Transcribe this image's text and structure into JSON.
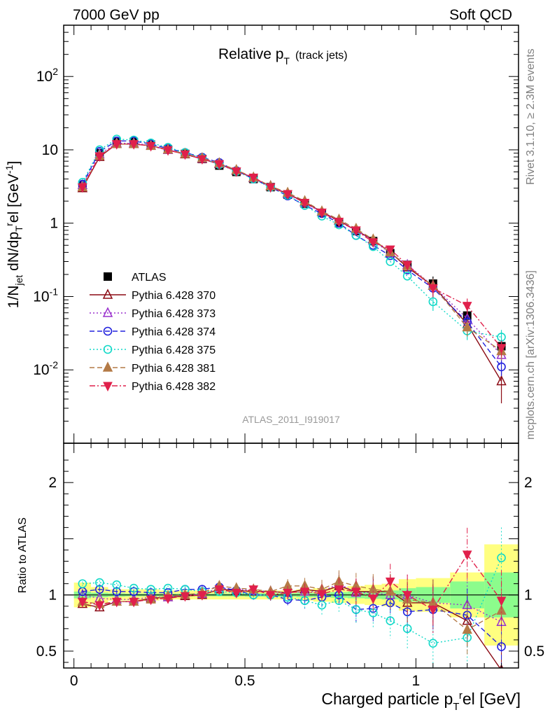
{
  "header": {
    "left": "7000 GeV pp",
    "right": "Soft QCD"
  },
  "side_text": {
    "right_upper": "Rivet 3.1.10, ≥ 2.3M events",
    "right_lower": "mcplots.cern.ch [arXiv:1306.3436]"
  },
  "plot_title": {
    "main": "Relative p",
    "sub": "T",
    "suffix": "(track jets)"
  },
  "analysis_label": "ATLAS_2011_I919017",
  "chart_data": [
    {
      "type": "scatter",
      "panel": "main",
      "ylabel": "1/N_jet dN/dp_T^rel [GeV^-1]",
      "yscale": "log",
      "ylim": [
        0.001,
        500
      ],
      "y_ticks": [
        {
          "value": 0.01,
          "label": "10^-2"
        },
        {
          "value": 0.1,
          "label": "10^-1"
        },
        {
          "value": 1,
          "label": "1"
        },
        {
          "value": 10,
          "label": "10"
        },
        {
          "value": 100,
          "label": "10^2"
        }
      ],
      "x": [
        0.025,
        0.075,
        0.125,
        0.175,
        0.225,
        0.275,
        0.325,
        0.375,
        0.425,
        0.475,
        0.525,
        0.575,
        0.625,
        0.675,
        0.725,
        0.775,
        0.825,
        0.875,
        0.925,
        0.975,
        1.05,
        1.15,
        1.25
      ],
      "xlim": [
        -0.03,
        1.3
      ],
      "legend_position": "middle-left",
      "series": [
        {
          "name": "ATLAS",
          "color": "#000000",
          "marker": "square",
          "line": "none",
          "values": [
            3.3,
            9.0,
            12.8,
            12.8,
            11.8,
            10.2,
            8.8,
            7.5,
            6.1,
            5.0,
            4.0,
            3.1,
            2.45,
            1.85,
            1.38,
            1.0,
            0.78,
            0.57,
            0.39,
            0.27,
            0.15,
            0.055,
            0.021
          ]
        },
        {
          "name": "Pythia 6.428 370",
          "color": "#8b0a14",
          "marker": "triangle-up-open",
          "line": "solid",
          "values": [
            3.0,
            8.0,
            12.0,
            12.0,
            11.4,
            10.0,
            8.7,
            7.5,
            6.4,
            5.2,
            4.1,
            3.2,
            2.5,
            1.95,
            1.42,
            1.08,
            0.8,
            0.59,
            0.4,
            0.25,
            0.14,
            0.042,
            0.007
          ]
        },
        {
          "name": "Pythia 6.428 373",
          "color": "#9a32cd",
          "marker": "triangle-up-open",
          "line": "dotted",
          "values": [
            3.3,
            8.7,
            12.3,
            12.3,
            11.5,
            10.0,
            8.8,
            7.6,
            6.5,
            5.25,
            4.15,
            3.2,
            2.5,
            1.9,
            1.42,
            1.1,
            0.8,
            0.58,
            0.39,
            0.27,
            0.14,
            0.05,
            0.016
          ]
        },
        {
          "name": "Pythia 6.428 374",
          "color": "#2222dd",
          "marker": "circle-open",
          "line": "dashed",
          "values": [
            3.4,
            9.5,
            13.2,
            13.2,
            12.0,
            10.4,
            9.2,
            7.9,
            6.7,
            5.2,
            4.0,
            3.1,
            2.35,
            1.75,
            1.35,
            1.0,
            0.68,
            0.5,
            0.36,
            0.23,
            0.13,
            0.045,
            0.011
          ]
        },
        {
          "name": "Pythia 6.428 375",
          "color": "#11d9c8",
          "marker": "circle-open",
          "line": "dotted",
          "values": [
            3.6,
            10.0,
            14.0,
            13.6,
            12.4,
            10.8,
            9.2,
            7.7,
            6.3,
            5.1,
            4.0,
            3.1,
            2.4,
            1.75,
            1.25,
            0.95,
            0.68,
            0.48,
            0.3,
            0.19,
            0.085,
            0.034,
            0.028
          ]
        },
        {
          "name": "Pythia 6.428 381",
          "color": "#b47a46",
          "marker": "triangle-up-filled",
          "line": "dashed",
          "values": [
            3.1,
            8.3,
            12.0,
            12.0,
            11.3,
            10.1,
            8.8,
            7.7,
            6.6,
            5.3,
            4.2,
            3.2,
            2.6,
            2.0,
            1.45,
            1.12,
            0.84,
            0.6,
            0.4,
            0.26,
            0.14,
            0.038,
            0.018
          ]
        },
        {
          "name": "Pythia 6.428 382",
          "color": "#e0204b",
          "marker": "triangle-down-filled",
          "line": "dashdot",
          "values": [
            3.1,
            8.2,
            12.0,
            12.0,
            11.3,
            9.9,
            8.7,
            7.5,
            6.4,
            5.1,
            4.2,
            3.1,
            2.5,
            1.9,
            1.4,
            1.05,
            0.8,
            0.55,
            0.44,
            0.27,
            0.13,
            0.075,
            0.02
          ]
        }
      ]
    },
    {
      "type": "line",
      "panel": "ratio",
      "ylabel": "Ratio to ATLAS",
      "xlabel": "Charged particle p_T^rel [GeV]",
      "ylim": [
        0.35,
        2.35
      ],
      "y_ticks": [
        0.5,
        1,
        2
      ],
      "x_ticks": [
        0,
        0.5,
        1
      ],
      "xlim": [
        -0.03,
        1.3
      ],
      "bin_edges": [
        0,
        0.05,
        0.1,
        0.15,
        0.2,
        0.25,
        0.3,
        0.35,
        0.4,
        0.45,
        0.5,
        0.55,
        0.6,
        0.65,
        0.7,
        0.75,
        0.8,
        0.85,
        0.9,
        0.95,
        1.0,
        1.1,
        1.2,
        1.3
      ],
      "band_stat": [
        0.03,
        0.02,
        0.015,
        0.012,
        0.012,
        0.012,
        0.012,
        0.012,
        0.012,
        0.012,
        0.015,
        0.015,
        0.015,
        0.02,
        0.02,
        0.025,
        0.03,
        0.035,
        0.04,
        0.06,
        0.07,
        0.12,
        0.2
      ],
      "band_total": [
        0.11,
        0.07,
        0.05,
        0.05,
        0.05,
        0.04,
        0.04,
        0.04,
        0.04,
        0.04,
        0.04,
        0.04,
        0.04,
        0.05,
        0.06,
        0.07,
        0.08,
        0.09,
        0.1,
        0.14,
        0.15,
        0.2,
        0.45
      ],
      "series": [
        {
          "name": "Pythia 6.428 370",
          "values": [
            0.92,
            0.89,
            0.94,
            0.94,
            0.97,
            0.98,
            0.99,
            1.0,
            1.05,
            1.04,
            1.03,
            1.03,
            1.02,
            1.05,
            1.03,
            1.08,
            1.03,
            1.03,
            1.03,
            0.93,
            0.93,
            0.77,
            0.33
          ]
        },
        {
          "name": "Pythia 6.428 373",
          "values": [
            1.0,
            0.97,
            0.96,
            0.96,
            0.98,
            0.98,
            1.0,
            1.01,
            1.06,
            1.05,
            1.04,
            1.03,
            1.02,
            1.03,
            1.03,
            1.1,
            1.02,
            1.02,
            1.0,
            1.0,
            0.93,
            0.91,
            0.76
          ]
        },
        {
          "name": "Pythia 6.428 374",
          "values": [
            1.03,
            1.05,
            1.03,
            1.03,
            1.02,
            1.02,
            1.05,
            1.05,
            1.07,
            1.04,
            1.0,
            1.0,
            0.96,
            0.95,
            0.98,
            1.0,
            0.87,
            0.88,
            0.93,
            0.85,
            0.87,
            0.82,
            0.54
          ]
        },
        {
          "name": "Pythia 6.428 375",
          "values": [
            1.1,
            1.11,
            1.09,
            1.06,
            1.05,
            1.06,
            1.05,
            1.03,
            1.03,
            1.02,
            1.0,
            1.0,
            0.98,
            0.95,
            0.91,
            0.95,
            0.87,
            0.84,
            0.77,
            0.7,
            0.57,
            0.62,
            1.33
          ]
        },
        {
          "name": "Pythia 6.428 381",
          "values": [
            0.94,
            0.92,
            0.94,
            0.94,
            0.96,
            0.99,
            1.0,
            1.02,
            1.08,
            1.06,
            1.05,
            1.03,
            1.08,
            1.08,
            1.05,
            1.12,
            1.08,
            1.05,
            1.03,
            0.96,
            0.93,
            0.69,
            0.86
          ]
        },
        {
          "name": "Pythia 6.428 382",
          "values": [
            0.94,
            0.91,
            0.94,
            0.94,
            0.96,
            0.97,
            0.99,
            1.0,
            1.05,
            1.02,
            1.05,
            1.0,
            1.02,
            1.03,
            1.01,
            1.05,
            1.03,
            0.97,
            1.12,
            1.0,
            0.87,
            1.36,
            0.95
          ]
        }
      ]
    }
  ]
}
